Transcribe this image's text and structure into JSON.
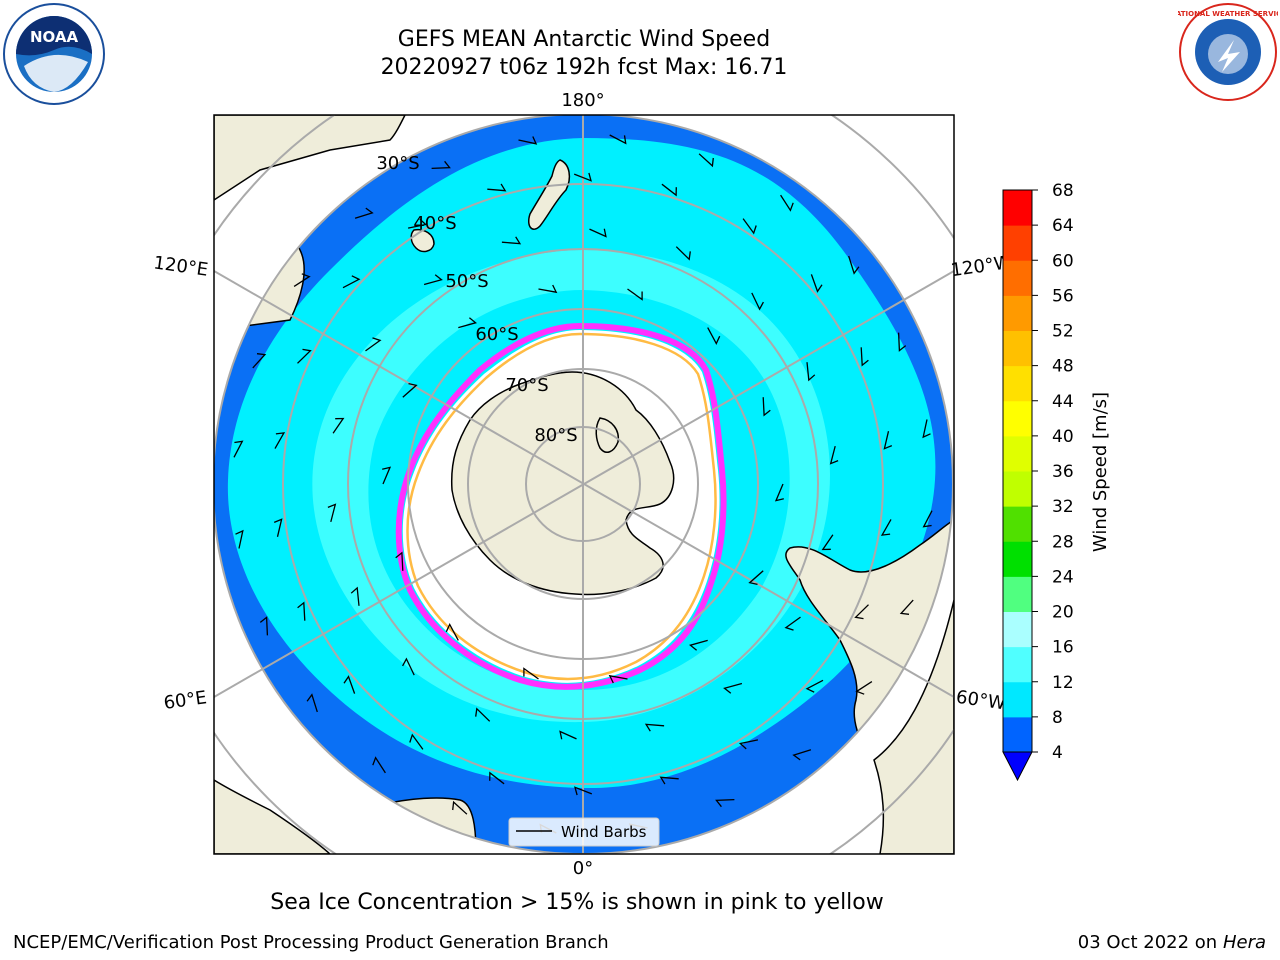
{
  "header": {
    "title_line1": "GEFS MEAN Antarctic Wind Speed",
    "title_line2": "20220927 t06z 192h fcst   Max: 16.71"
  },
  "map": {
    "longitude_labels": {
      "top": "180°",
      "bottom": "0°",
      "upper_left": "120°E",
      "upper_right": "120°W",
      "lower_left": "60°E",
      "lower_right": "60°W"
    },
    "latitude_labels": [
      "30°S",
      "40°S",
      "50°S",
      "60°S",
      "70°S",
      "80°S"
    ],
    "legend": {
      "label": "Wind Barbs"
    }
  },
  "colorbar": {
    "label": "Wind Speed [m/s]",
    "ticks": [
      "4",
      "8",
      "12",
      "16",
      "20",
      "24",
      "28",
      "32",
      "36",
      "40",
      "44",
      "48",
      "52",
      "56",
      "60",
      "64",
      "68"
    ],
    "colors": [
      "#0064ff",
      "#00e8ff",
      "#50ffff",
      "#aaffff",
      "#50ff80",
      "#00e000",
      "#50e000",
      "#c0ff00",
      "#e0ff00",
      "#ffff00",
      "#ffe000",
      "#ffc000",
      "#ff9a00",
      "#ff6e00",
      "#ff4000",
      "#ff0000"
    ],
    "extend_color": "#0000ff"
  },
  "caption": "Sea Ice Concentration > 15% is shown in pink to yellow",
  "footer": {
    "left": "NCEP/EMC/Verification Post Processing Product Generation Branch",
    "right_date": "03 Oct 2022 on",
    "right_host": "Hera"
  },
  "logos": {
    "left": "NOAA",
    "right": "NATIONAL WEATHER SERVICE"
  },
  "colors": {
    "land": "#efedda",
    "ocean_deep": "#0a70f5",
    "ocean_mid": "#00f0ff",
    "ocean_light": "#4ff",
    "ice_edge_pink": "#ff30ff",
    "ice_edge_yellow": "#ffbb44"
  }
}
